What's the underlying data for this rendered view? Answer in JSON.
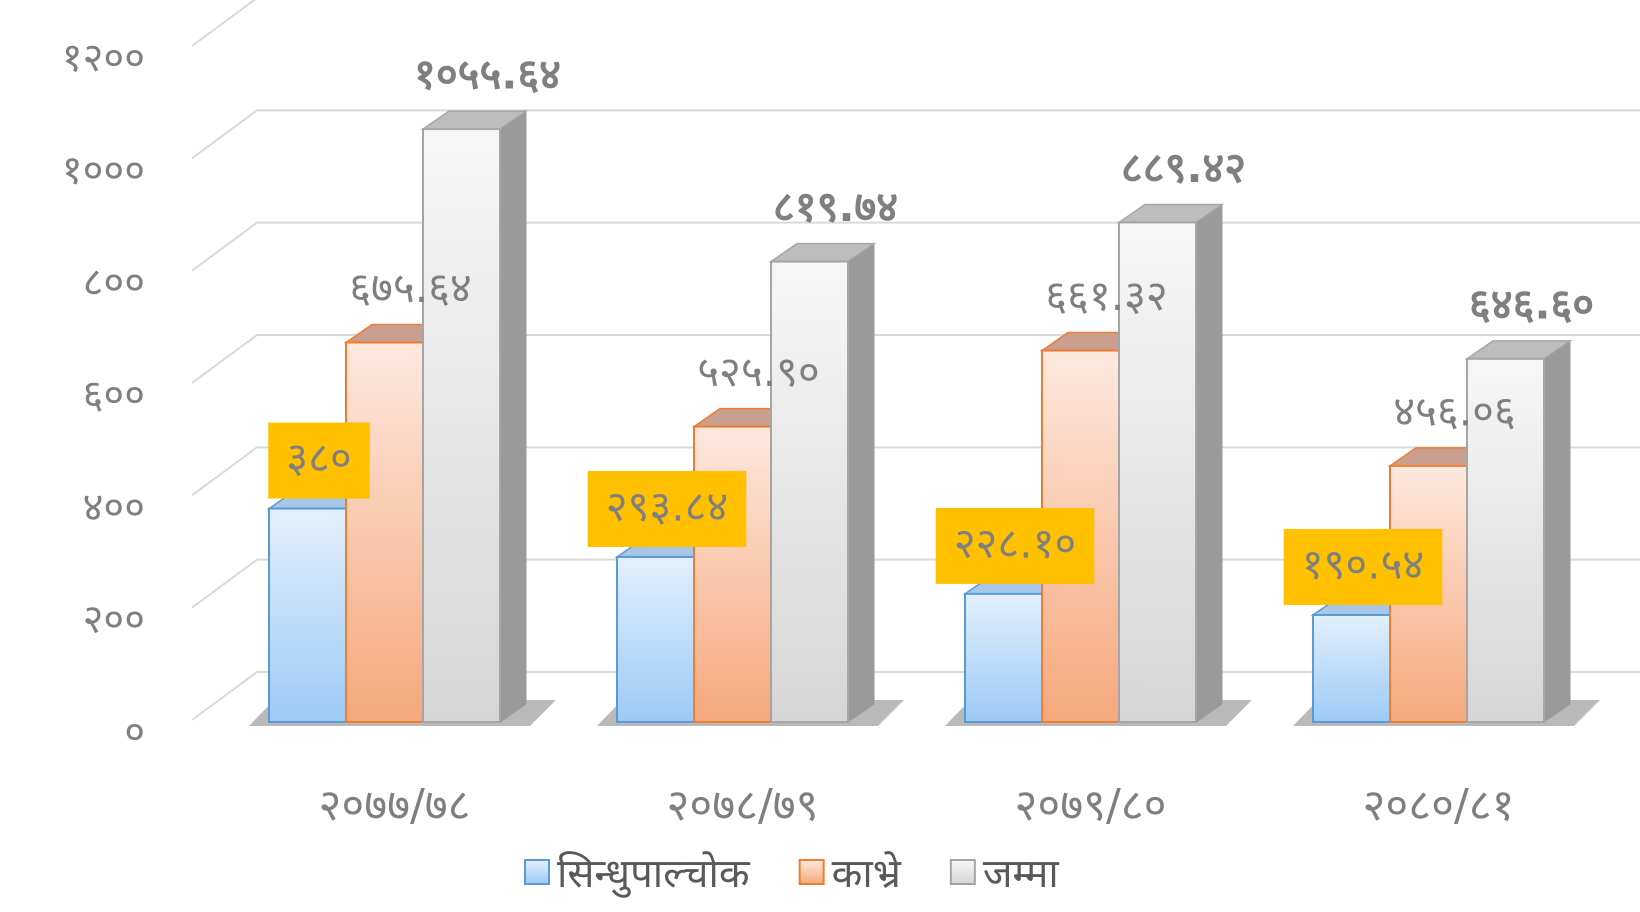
{
  "chart_data": {
    "type": "bar3d",
    "categories": [
      "२०७७/७८",
      "२०७८/७९",
      "२०७९/८०",
      "२०८०/८१"
    ],
    "series": [
      {
        "name": "सिन्धुपाल्चोक",
        "color": "#5b9bd5",
        "values": [
          380,
          293.84,
          228.1,
          190.54
        ],
        "value_labels": [
          "३८०",
          "२९३.८४",
          "२२८.१०",
          "१९०.५४"
        ]
      },
      {
        "name": "काभ्रे",
        "color": "#ed7d31",
        "values": [
          675.64,
          525.9,
          661.32,
          456.06
        ],
        "value_labels": [
          "६७५.६४",
          "५२५.९०",
          "६६१.३२",
          "४५६.०६"
        ]
      },
      {
        "name": "जम्मा",
        "color": "#a5a5a5",
        "values": [
          1055.64,
          819.74,
          889.42,
          646.6
        ],
        "value_labels": [
          "१०५५.६४",
          "८१९.७४",
          "८८९.४२",
          "६४६.६०"
        ]
      }
    ],
    "ylim": [
      0,
      1200
    ],
    "yticks": [
      {
        "value": 0,
        "label": "०"
      },
      {
        "value": 200,
        "label": "२००"
      },
      {
        "value": 400,
        "label": "४००"
      },
      {
        "value": 600,
        "label": "६००"
      },
      {
        "value": 800,
        "label": "८००"
      },
      {
        "value": 1000,
        "label": "१०००"
      },
      {
        "value": 1200,
        "label": "१२००"
      }
    ],
    "grid": true,
    "legend": "bottom"
  }
}
